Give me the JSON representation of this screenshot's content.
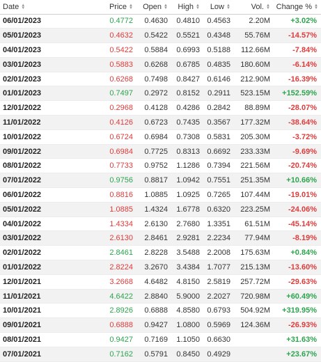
{
  "table": {
    "headers": {
      "date": "Date",
      "price": "Price",
      "open": "Open",
      "high": "High",
      "low": "Low",
      "vol": "Vol.",
      "change": "Change %"
    },
    "colors": {
      "positive": "#2da44e",
      "negative": "#e03b3b"
    },
    "rows": [
      {
        "date": "06/01/2023",
        "price": "0.4772",
        "open": "0.4630",
        "high": "0.4810",
        "low": "0.4563",
        "vol": "2.20M",
        "change": "+3.02%",
        "dir": "pos"
      },
      {
        "date": "05/01/2023",
        "price": "0.4632",
        "open": "0.5422",
        "high": "0.5521",
        "low": "0.4348",
        "vol": "55.76M",
        "change": "-14.57%",
        "dir": "neg"
      },
      {
        "date": "04/01/2023",
        "price": "0.5422",
        "open": "0.5884",
        "high": "0.6993",
        "low": "0.5188",
        "vol": "112.66M",
        "change": "-7.84%",
        "dir": "neg"
      },
      {
        "date": "03/01/2023",
        "price": "0.5883",
        "open": "0.6268",
        "high": "0.6785",
        "low": "0.4835",
        "vol": "180.60M",
        "change": "-6.14%",
        "dir": "neg"
      },
      {
        "date": "02/01/2023",
        "price": "0.6268",
        "open": "0.7498",
        "high": "0.8427",
        "low": "0.6146",
        "vol": "212.90M",
        "change": "-16.39%",
        "dir": "neg"
      },
      {
        "date": "01/01/2023",
        "price": "0.7497",
        "open": "0.2972",
        "high": "0.8152",
        "low": "0.2911",
        "vol": "523.15M",
        "change": "+152.59%",
        "dir": "pos"
      },
      {
        "date": "12/01/2022",
        "price": "0.2968",
        "open": "0.4128",
        "high": "0.4286",
        "low": "0.2842",
        "vol": "88.89M",
        "change": "-28.07%",
        "dir": "neg"
      },
      {
        "date": "11/01/2022",
        "price": "0.4126",
        "open": "0.6723",
        "high": "0.7435",
        "low": "0.3567",
        "vol": "177.32M",
        "change": "-38.64%",
        "dir": "neg"
      },
      {
        "date": "10/01/2022",
        "price": "0.6724",
        "open": "0.6984",
        "high": "0.7308",
        "low": "0.5831",
        "vol": "205.30M",
        "change": "-3.72%",
        "dir": "neg"
      },
      {
        "date": "09/01/2022",
        "price": "0.6984",
        "open": "0.7725",
        "high": "0.8313",
        "low": "0.6692",
        "vol": "233.33M",
        "change": "-9.69%",
        "dir": "neg"
      },
      {
        "date": "08/01/2022",
        "price": "0.7733",
        "open": "0.9752",
        "high": "1.1286",
        "low": "0.7394",
        "vol": "221.56M",
        "change": "-20.74%",
        "dir": "neg"
      },
      {
        "date": "07/01/2022",
        "price": "0.9756",
        "open": "0.8817",
        "high": "1.0942",
        "low": "0.7551",
        "vol": "251.35M",
        "change": "+10.66%",
        "dir": "pos"
      },
      {
        "date": "06/01/2022",
        "price": "0.8816",
        "open": "1.0885",
        "high": "1.0925",
        "low": "0.7265",
        "vol": "107.44M",
        "change": "-19.01%",
        "dir": "neg"
      },
      {
        "date": "05/01/2022",
        "price": "1.0885",
        "open": "1.4324",
        "high": "1.6778",
        "low": "0.6320",
        "vol": "223.25M",
        "change": "-24.06%",
        "dir": "neg"
      },
      {
        "date": "04/01/2022",
        "price": "1.4334",
        "open": "2.6130",
        "high": "2.7680",
        "low": "1.3351",
        "vol": "61.51M",
        "change": "-45.14%",
        "dir": "neg"
      },
      {
        "date": "03/01/2022",
        "price": "2.6130",
        "open": "2.8461",
        "high": "2.9281",
        "low": "2.2234",
        "vol": "77.94M",
        "change": "-8.19%",
        "dir": "neg"
      },
      {
        "date": "02/01/2022",
        "price": "2.8461",
        "open": "2.8228",
        "high": "3.5488",
        "low": "2.2008",
        "vol": "175.63M",
        "change": "+0.84%",
        "dir": "pos"
      },
      {
        "date": "01/01/2022",
        "price": "2.8224",
        "open": "3.2670",
        "high": "3.4384",
        "low": "1.7077",
        "vol": "215.13M",
        "change": "-13.60%",
        "dir": "neg"
      },
      {
        "date": "12/01/2021",
        "price": "3.2668",
        "open": "4.6482",
        "high": "4.8150",
        "low": "2.5819",
        "vol": "257.72M",
        "change": "-29.63%",
        "dir": "neg"
      },
      {
        "date": "11/01/2021",
        "price": "4.6422",
        "open": "2.8840",
        "high": "5.9000",
        "low": "2.2027",
        "vol": "720.98M",
        "change": "+60.49%",
        "dir": "pos"
      },
      {
        "date": "10/01/2021",
        "price": "2.8926",
        "open": "0.6888",
        "high": "4.8580",
        "low": "0.6793",
        "vol": "504.92M",
        "change": "+319.95%",
        "dir": "pos"
      },
      {
        "date": "09/01/2021",
        "price": "0.6888",
        "open": "0.9427",
        "high": "1.0800",
        "low": "0.5969",
        "vol": "124.36M",
        "change": "-26.93%",
        "dir": "neg"
      },
      {
        "date": "08/01/2021",
        "price": "0.9427",
        "open": "0.7169",
        "high": "1.1050",
        "low": "0.6630",
        "vol": "",
        "change": "+31.63%",
        "dir": "pos"
      },
      {
        "date": "07/01/2021",
        "price": "0.7162",
        "open": "0.5791",
        "high": "0.8450",
        "low": "0.4929",
        "vol": "",
        "change": "+23.67%",
        "dir": "pos"
      }
    ]
  }
}
